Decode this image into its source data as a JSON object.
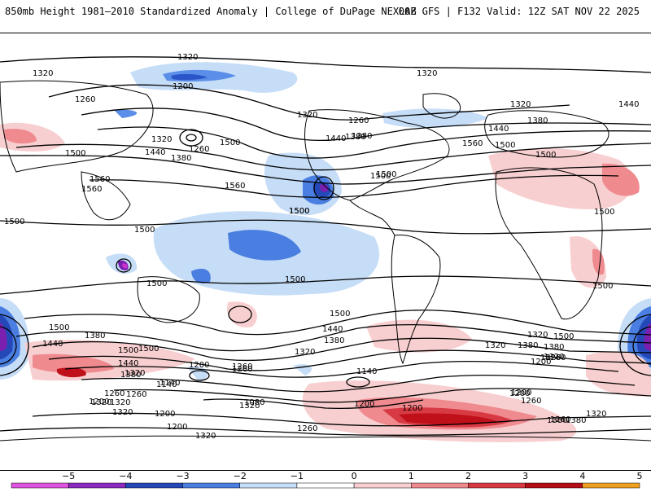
{
  "header": {
    "title": "850mb Height 1981–2010 Standardized Anomaly | College of DuPage NEXLAB",
    "valid": "00Z GFS | F132 Valid: 12Z SAT NOV 22 2025"
  },
  "map": {
    "contour_labels": [
      "1320",
      "1320",
      "1200",
      "1260",
      "1320",
      "1260",
      "1320",
      "1380",
      "1500",
      "1440",
      "1560",
      "1560",
      "1500",
      "1320",
      "1380",
      "1440",
      "1320",
      "1260",
      "1380",
      "1440",
      "1500",
      "1560",
      "1500",
      "1500",
      "1500",
      "1500",
      "1500",
      "1500",
      "1500",
      "1500",
      "1500",
      "1500",
      "1500",
      "1440",
      "1380",
      "1380",
      "1320",
      "1260",
      "1200",
      "1140",
      "1080",
      "1200",
      "1320",
      "1200",
      "1260",
      "1320",
      "1500",
      "1440",
      "1380",
      "1320",
      "1200",
      "1260",
      "1140",
      "1200",
      "1320",
      "1260",
      "1200",
      "1320",
      "1380",
      "1320",
      "1260",
      "1200",
      "1260",
      "1320",
      "1380",
      "1440",
      "1500",
      "1500",
      "1440",
      "1380",
      "1320",
      "1260",
      "1200",
      "1320",
      "1260",
      "1380",
      "1200",
      "1500",
      "1140",
      "1320",
      "1320",
      "1380",
      "1500",
      "1560"
    ],
    "anomaly_colors": {
      "neg5": "#cc33cc",
      "neg4": "#7a1fb0",
      "neg3": "#2a55c8",
      "neg2": "#5a8ee8",
      "neg1": "#c6ddf7",
      "zero": "#ffffff",
      "pos1": "#f8cfd0",
      "pos2": "#ef8a8f",
      "pos3": "#d83a44",
      "pos4": "#c0101a",
      "pos5": "#f0a020"
    }
  },
  "colorbar": {
    "ticks": [
      "−5",
      "−4",
      "−3",
      "−2",
      "−1",
      "0",
      "1",
      "2",
      "3",
      "4",
      "5"
    ],
    "colors": [
      "#e055e0",
      "#8a2ac0",
      "#2448b8",
      "#4a7ee0",
      "#c6ddf7",
      "#ffffff",
      "#f8cfd0",
      "#ef8a8f",
      "#d83a44",
      "#b40d18",
      "#f0a020"
    ]
  }
}
